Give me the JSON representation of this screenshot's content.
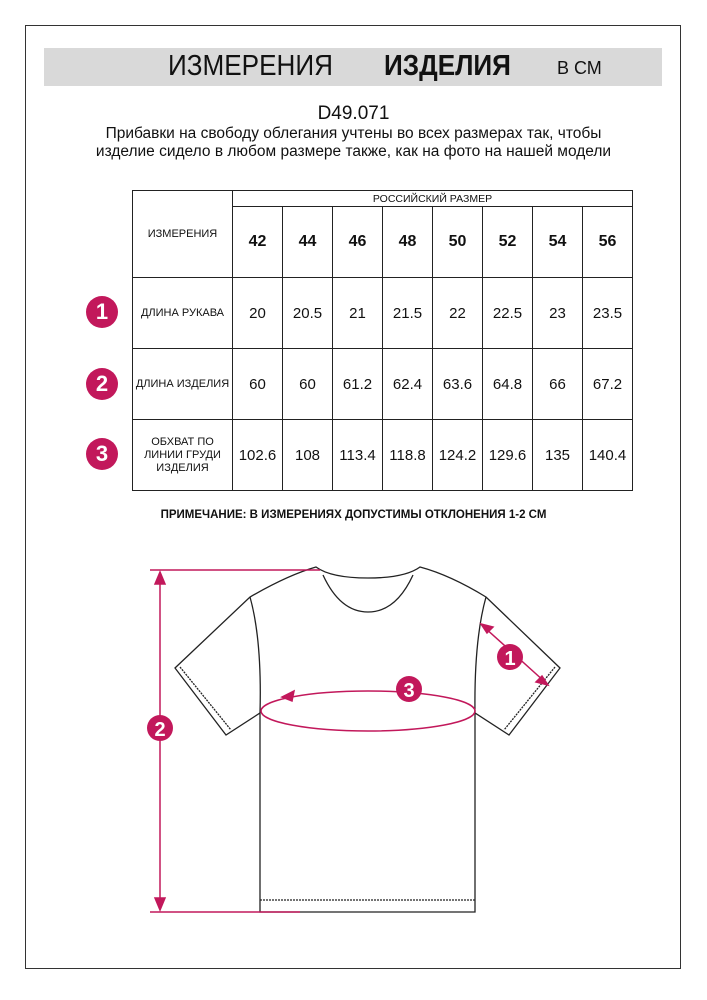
{
  "header": {
    "title_regular": "ИЗМЕРЕНИЯ",
    "title_bold": "ИЗДЕЛИЯ",
    "unit": "В СМ"
  },
  "product_code": "D49.071",
  "description": "Прибавки на свободу облегания учтены во всех размерах так, чтобы изделие сидело в любом размере также, как на фото на нашей модели",
  "table": {
    "corner_label": "ИЗМЕРЕНИЯ",
    "group_header": "РОССИЙСКИЙ РАЗМЕР",
    "sizes": [
      "42",
      "44",
      "46",
      "48",
      "50",
      "52",
      "54",
      "56"
    ],
    "rows": [
      {
        "badge": "1",
        "label": "ДЛИНА РУКАВА",
        "values": [
          "20",
          "20.5",
          "21",
          "21.5",
          "22",
          "22.5",
          "23",
          "23.5"
        ]
      },
      {
        "badge": "2",
        "label": "ДЛИНА ИЗДЕЛИЯ",
        "values": [
          "60",
          "60",
          "61.2",
          "62.4",
          "63.6",
          "64.8",
          "66",
          "67.2"
        ]
      },
      {
        "badge": "3",
        "label": "ОБХВАТ ПО ЛИНИИ ГРУДИ ИЗДЕЛИЯ",
        "values": [
          "102.6",
          "108",
          "113.4",
          "118.8",
          "124.2",
          "129.6",
          "135",
          "140.4"
        ]
      }
    ]
  },
  "note": "ПРИМЕЧАНИЕ: В ИЗМЕРЕНИЯХ ДОПУСТИМЫ ОТКЛОНЕНИЯ 1-2 СМ",
  "diagram": {
    "markers": [
      "1",
      "2",
      "3"
    ],
    "accent_color": "#c2185b"
  }
}
